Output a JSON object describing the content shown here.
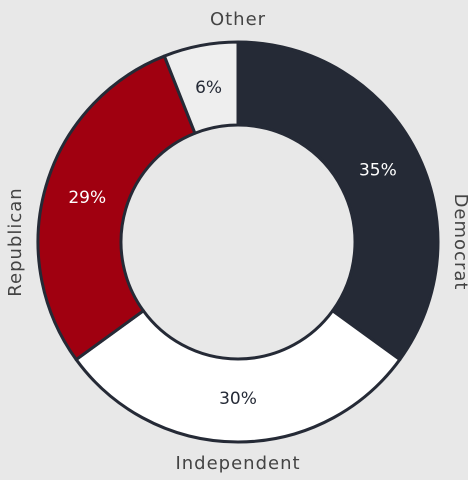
{
  "chart_data": {
    "type": "donut",
    "categories": [
      "Democrat",
      "Independent",
      "Republican",
      "Other"
    ],
    "values": [
      35,
      30,
      29,
      6
    ],
    "value_labels": [
      "35%",
      "30%",
      "29%",
      "6%"
    ],
    "colors": [
      "#252a36",
      "#ffffff",
      "#a00010",
      "#eeeeee"
    ]
  }
}
